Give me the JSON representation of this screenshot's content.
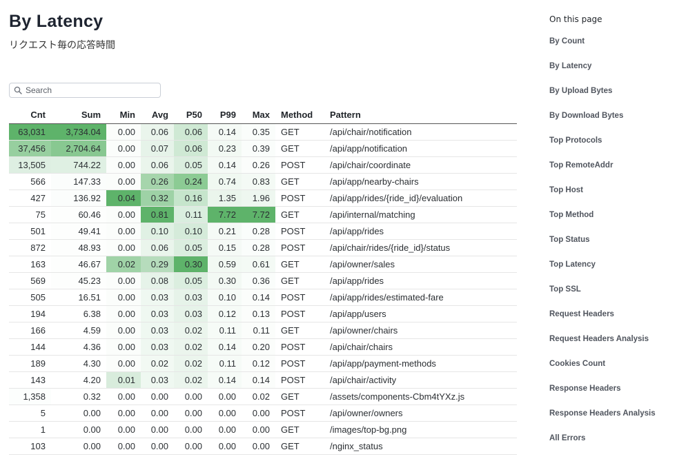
{
  "page": {
    "title": "By Latency",
    "subtitle": "リクエスト毎の応答時間"
  },
  "search": {
    "placeholder": "Search"
  },
  "table": {
    "columns": [
      "Cnt",
      "Sum",
      "Min",
      "Avg",
      "P50",
      "P99",
      "Max",
      "Method",
      "Pattern"
    ],
    "rows": [
      [
        "63,031",
        "3,734.04",
        "0.00",
        "0.06",
        "0.06",
        "0.14",
        "0.35",
        "GET",
        "/api/chair/notification"
      ],
      [
        "37,456",
        "2,704.64",
        "0.00",
        "0.07",
        "0.06",
        "0.23",
        "0.39",
        "GET",
        "/api/app/notification"
      ],
      [
        "13,505",
        "744.22",
        "0.00",
        "0.06",
        "0.05",
        "0.14",
        "0.26",
        "POST",
        "/api/chair/coordinate"
      ],
      [
        "566",
        "147.33",
        "0.00",
        "0.26",
        "0.24",
        "0.74",
        "0.83",
        "GET",
        "/api/app/nearby-chairs"
      ],
      [
        "427",
        "136.92",
        "0.04",
        "0.32",
        "0.16",
        "1.35",
        "1.96",
        "POST",
        "/api/app/rides/{ride_id}/evaluation"
      ],
      [
        "75",
        "60.46",
        "0.00",
        "0.81",
        "0.11",
        "7.72",
        "7.72",
        "GET",
        "/api/internal/matching"
      ],
      [
        "501",
        "49.41",
        "0.00",
        "0.10",
        "0.10",
        "0.21",
        "0.28",
        "POST",
        "/api/app/rides"
      ],
      [
        "872",
        "48.93",
        "0.00",
        "0.06",
        "0.05",
        "0.15",
        "0.28",
        "POST",
        "/api/chair/rides/{ride_id}/status"
      ],
      [
        "163",
        "46.67",
        "0.02",
        "0.29",
        "0.30",
        "0.59",
        "0.61",
        "GET",
        "/api/owner/sales"
      ],
      [
        "569",
        "45.23",
        "0.00",
        "0.08",
        "0.05",
        "0.30",
        "0.36",
        "GET",
        "/api/app/rides"
      ],
      [
        "505",
        "16.51",
        "0.00",
        "0.03",
        "0.03",
        "0.10",
        "0.14",
        "POST",
        "/api/app/rides/estimated-fare"
      ],
      [
        "194",
        "6.38",
        "0.00",
        "0.03",
        "0.03",
        "0.12",
        "0.13",
        "POST",
        "/api/app/users"
      ],
      [
        "166",
        "4.59",
        "0.00",
        "0.03",
        "0.02",
        "0.11",
        "0.11",
        "GET",
        "/api/owner/chairs"
      ],
      [
        "144",
        "4.36",
        "0.00",
        "0.03",
        "0.02",
        "0.14",
        "0.20",
        "POST",
        "/api/chair/chairs"
      ],
      [
        "189",
        "4.30",
        "0.00",
        "0.02",
        "0.02",
        "0.11",
        "0.12",
        "POST",
        "/api/app/payment-methods"
      ],
      [
        "143",
        "4.20",
        "0.01",
        "0.03",
        "0.02",
        "0.14",
        "0.14",
        "POST",
        "/api/chair/activity"
      ],
      [
        "1,358",
        "0.32",
        "0.00",
        "0.00",
        "0.00",
        "0.00",
        "0.02",
        "GET",
        "/assets/components-Cbm4tYXz.js"
      ],
      [
        "5",
        "0.00",
        "0.00",
        "0.00",
        "0.00",
        "0.00",
        "0.00",
        "POST",
        "/api/owner/owners"
      ],
      [
        "1",
        "0.00",
        "0.00",
        "0.00",
        "0.00",
        "0.00",
        "0.00",
        "GET",
        "/images/top-bg.png"
      ],
      [
        "103",
        "0.00",
        "0.00",
        "0.00",
        "0.00",
        "0.00",
        "0.00",
        "GET",
        "/nginx_status"
      ]
    ],
    "heatmap_colors": [
      [
        "#5eb36a",
        "#5eb36a",
        "#fbfdfb",
        "#eaf5ec",
        "#cfe9d4",
        "#f5faf6",
        "#fafdfb"
      ],
      [
        "#97cf9f",
        "#88c891",
        "#fbfdfb",
        "#e6f3e9",
        "#cfe9d4",
        "#f2f9f3",
        "#fafdfb"
      ],
      [
        "#deefe2",
        "#dff0e3",
        "#fbfdfb",
        "#eaf5ec",
        "#dbeedf",
        "#f5faf6",
        "#fbfdfb"
      ],
      [
        "#ffffff",
        "#fbfdfc",
        "#fbfdfb",
        "#a6d5ac",
        "#8ccb94",
        "#f0f8f1",
        "#f4faf5"
      ],
      [
        "#ffffff",
        "#fbfdfc",
        "#5eb36a",
        "#9ed2a6",
        "#c6e5cc",
        "#eaf5ec",
        "#eef7f0"
      ],
      [
        "#ffffff",
        "#fdfefd",
        "#fbfdfb",
        "#5eb36a",
        "#daeedf",
        "#5eb36a",
        "#5eb36a"
      ],
      [
        "#ffffff",
        "#fdfefd",
        "#fbfdfb",
        "#e0f1e4",
        "#d5ebda",
        "#f5faf6",
        "#fafdfb"
      ],
      [
        "#ffffff",
        "#fdfefd",
        "#fbfdfb",
        "#eaf5ec",
        "#dbeedf",
        "#f5faf6",
        "#fafdfb"
      ],
      [
        "#ffffff",
        "#fdfefd",
        "#a0d3a7",
        "#b6dcbc",
        "#5eb36a",
        "#f2f9f3",
        "#f4faf5"
      ],
      [
        "#ffffff",
        "#fdfefd",
        "#fbfdfb",
        "#e6f3e9",
        "#dbeedf",
        "#f3f9f4",
        "#fafdfb"
      ],
      [
        "#ffffff",
        "#ffffff",
        "#fbfdfb",
        "#eff8f1",
        "#e6f3e9",
        "#f6fbf7",
        "#fbfdfb"
      ],
      [
        "#ffffff",
        "#ffffff",
        "#fbfdfb",
        "#eff8f1",
        "#e6f3e9",
        "#f6fbf7",
        "#fbfdfb"
      ],
      [
        "#ffffff",
        "#ffffff",
        "#fbfdfb",
        "#eff8f1",
        "#ebf5ed",
        "#f6fbf7",
        "#fbfdfb"
      ],
      [
        "#ffffff",
        "#ffffff",
        "#fbfdfb",
        "#eff8f1",
        "#ebf5ed",
        "#f6fbf7",
        "#fbfdfb"
      ],
      [
        "#ffffff",
        "#ffffff",
        "#fbfdfb",
        "#f2f9f3",
        "#ebf5ed",
        "#f6fbf7",
        "#fbfdfb"
      ],
      [
        "#ffffff",
        "#ffffff",
        "#d8ecdc",
        "#eff8f1",
        "#ebf5ed",
        "#f6fbf7",
        "#fbfdfb"
      ],
      [
        "#fcfefd",
        "#ffffff",
        "#ffffff",
        "#ffffff",
        "#ffffff",
        "#ffffff",
        "#ffffff"
      ],
      [
        "#ffffff",
        "#ffffff",
        "#ffffff",
        "#ffffff",
        "#ffffff",
        "#ffffff",
        "#ffffff"
      ],
      [
        "#ffffff",
        "#ffffff",
        "#ffffff",
        "#ffffff",
        "#ffffff",
        "#ffffff",
        "#ffffff"
      ],
      [
        "#ffffff",
        "#ffffff",
        "#ffffff",
        "#ffffff",
        "#ffffff",
        "#ffffff",
        "#ffffff"
      ]
    ]
  },
  "toc": {
    "title": "On this page",
    "items": [
      "By Count",
      "By Latency",
      "By Upload Bytes",
      "By Download Bytes",
      "Top Protocols",
      "Top RemoteAddr",
      "Top Host",
      "Top Method",
      "Top Status",
      "Top Latency",
      "Top SSL",
      "Request Headers",
      "Request Headers Analysis",
      "Cookies Count",
      "Response Headers",
      "Response Headers Analysis",
      "All Errors"
    ]
  }
}
